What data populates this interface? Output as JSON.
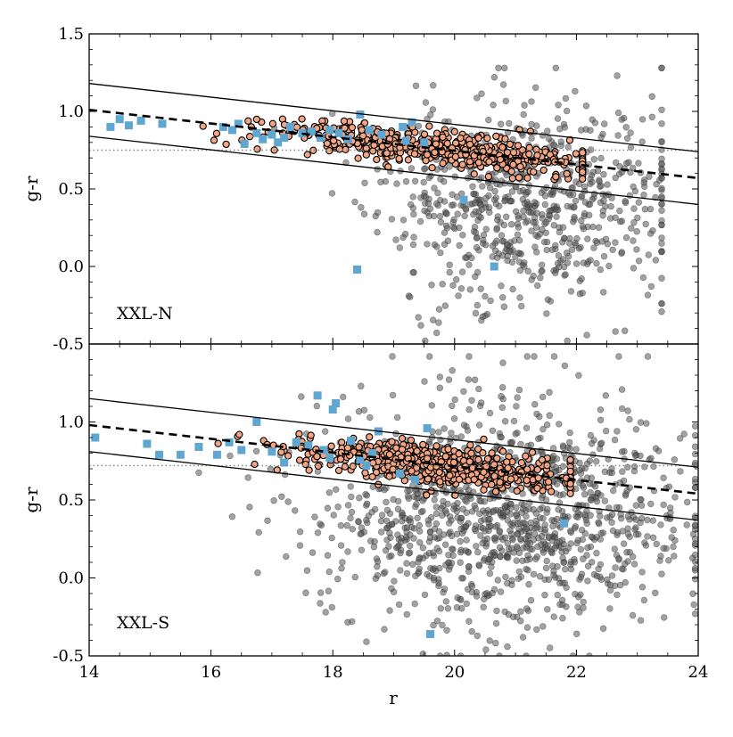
{
  "chart_data": [
    {
      "type": "scatter",
      "panel_label": "XXL-N",
      "xlabel": "",
      "ylabel": "g-r",
      "xlim": [
        14,
        24
      ],
      "ylim": [
        -0.5,
        1.5
      ],
      "x_ticks": [],
      "y_ticks": [
        "1.5",
        "1.0",
        "0.5",
        "0.0",
        "-0.5"
      ],
      "red_sequence": {
        "center_line": {
          "x": [
            14,
            24
          ],
          "y": [
            1.01,
            0.57
          ],
          "style": "dashed"
        },
        "upper_bound": {
          "x": [
            14,
            24
          ],
          "y": [
            1.18,
            0.74
          ],
          "style": "solid"
        },
        "lower_bound": {
          "x": [
            14,
            24
          ],
          "y": [
            0.84,
            0.4
          ],
          "style": "solid"
        }
      },
      "reference_line": {
        "y": 0.75,
        "style": "dotted",
        "color": "#888888"
      },
      "series": [
        {
          "marker": "circle",
          "color": "#555555",
          "opacity": 0.55,
          "generated": {
            "count": 720,
            "seed": 11,
            "r_mean": 21.2,
            "r_sd": 1.2,
            "r_min": 17.0,
            "r_max": 23.4,
            "c_mean": 0.42,
            "c_sd": 0.33,
            "c_min": -0.48,
            "c_max": 1.28
          }
        },
        {
          "marker": "circle",
          "color": "#f4a582",
          "edge": "#000000",
          "generated": {
            "count": 520,
            "seed": 23,
            "r_mean": 19.6,
            "r_sd": 1.3,
            "r_min": 15.5,
            "r_max": 22.1,
            "slope": -0.044,
            "intercept": 1.626,
            "scatter": 0.055
          }
        },
        {
          "marker": "square",
          "color": "#5fa6d1",
          "points": [
            [
              14.35,
              0.9
            ],
            [
              14.5,
              0.95
            ],
            [
              14.65,
              0.91
            ],
            [
              14.85,
              0.94
            ],
            [
              15.2,
              0.92
            ],
            [
              16.2,
              0.9
            ],
            [
              16.35,
              0.88
            ],
            [
              16.45,
              0.92
            ],
            [
              16.55,
              0.79
            ],
            [
              16.75,
              0.86
            ],
            [
              16.85,
              0.82
            ],
            [
              17.0,
              0.85
            ],
            [
              17.1,
              0.8
            ],
            [
              17.2,
              0.83
            ],
            [
              17.3,
              0.9
            ],
            [
              17.5,
              0.86
            ],
            [
              17.65,
              0.87
            ],
            [
              17.8,
              0.83
            ],
            [
              17.95,
              0.88
            ],
            [
              18.1,
              0.86
            ],
            [
              18.25,
              0.82
            ],
            [
              18.45,
              0.98
            ],
            [
              18.6,
              0.88
            ],
            [
              18.8,
              0.85
            ],
            [
              19.15,
              0.9
            ],
            [
              19.3,
              0.93
            ],
            [
              19.5,
              0.8
            ],
            [
              19.2,
              0.81
            ],
            [
              20.15,
              0.43
            ],
            [
              20.65,
              0.0
            ],
            [
              18.4,
              -0.02
            ]
          ]
        }
      ]
    },
    {
      "type": "scatter",
      "panel_label": "XXL-S",
      "xlabel": "r",
      "ylabel": "g-r",
      "xlim": [
        14,
        24
      ],
      "ylim": [
        -0.5,
        1.5
      ],
      "x_ticks": [
        "14",
        "16",
        "18",
        "20",
        "22",
        "24"
      ],
      "y_ticks": [
        "1.0",
        "0.5",
        "0.0",
        "-0.5"
      ],
      "red_sequence": {
        "center_line": {
          "x": [
            14,
            24
          ],
          "y": [
            0.98,
            0.54
          ],
          "style": "dashed"
        },
        "upper_bound": {
          "x": [
            14,
            24
          ],
          "y": [
            1.15,
            0.71
          ],
          "style": "solid"
        },
        "lower_bound": {
          "x": [
            14,
            24
          ],
          "y": [
            0.81,
            0.37
          ],
          "style": "solid"
        }
      },
      "reference_line": {
        "y": 0.72,
        "style": "dotted",
        "color": "#888888"
      },
      "series": [
        {
          "marker": "circle",
          "color": "#555555",
          "opacity": 0.55,
          "generated": {
            "count": 1200,
            "seed": 37,
            "r_mean": 20.8,
            "r_sd": 1.55,
            "r_min": 15.8,
            "r_max": 23.95,
            "c_mean": 0.42,
            "c_sd": 0.36,
            "c_min": -0.5,
            "c_max": 1.42
          }
        },
        {
          "marker": "circle",
          "color": "#f4a582",
          "edge": "#000000",
          "generated": {
            "count": 640,
            "seed": 53,
            "r_mean": 19.7,
            "r_sd": 1.05,
            "r_min": 14.5,
            "r_max": 21.9,
            "slope": -0.044,
            "intercept": 1.596,
            "scatter": 0.06
          }
        },
        {
          "marker": "square",
          "color": "#5fa6d1",
          "points": [
            [
              14.1,
              0.9
            ],
            [
              14.95,
              0.86
            ],
            [
              15.15,
              0.79
            ],
            [
              15.5,
              0.79
            ],
            [
              15.8,
              0.84
            ],
            [
              16.1,
              0.79
            ],
            [
              16.3,
              0.87
            ],
            [
              16.5,
              0.82
            ],
            [
              16.75,
              1.0
            ],
            [
              17.0,
              0.81
            ],
            [
              17.2,
              0.74
            ],
            [
              17.4,
              0.87
            ],
            [
              17.6,
              0.85
            ],
            [
              17.75,
              1.17
            ],
            [
              17.85,
              0.82
            ],
            [
              17.95,
              0.77
            ],
            [
              18.0,
              1.08
            ],
            [
              18.05,
              1.12
            ],
            [
              18.3,
              0.88
            ],
            [
              18.45,
              0.76
            ],
            [
              18.55,
              0.72
            ],
            [
              18.75,
              0.94
            ],
            [
              18.65,
              0.8
            ],
            [
              19.1,
              0.67
            ],
            [
              19.35,
              0.63
            ],
            [
              19.55,
              0.96
            ],
            [
              21.8,
              0.35
            ],
            [
              19.6,
              -0.36
            ]
          ]
        }
      ]
    }
  ]
}
